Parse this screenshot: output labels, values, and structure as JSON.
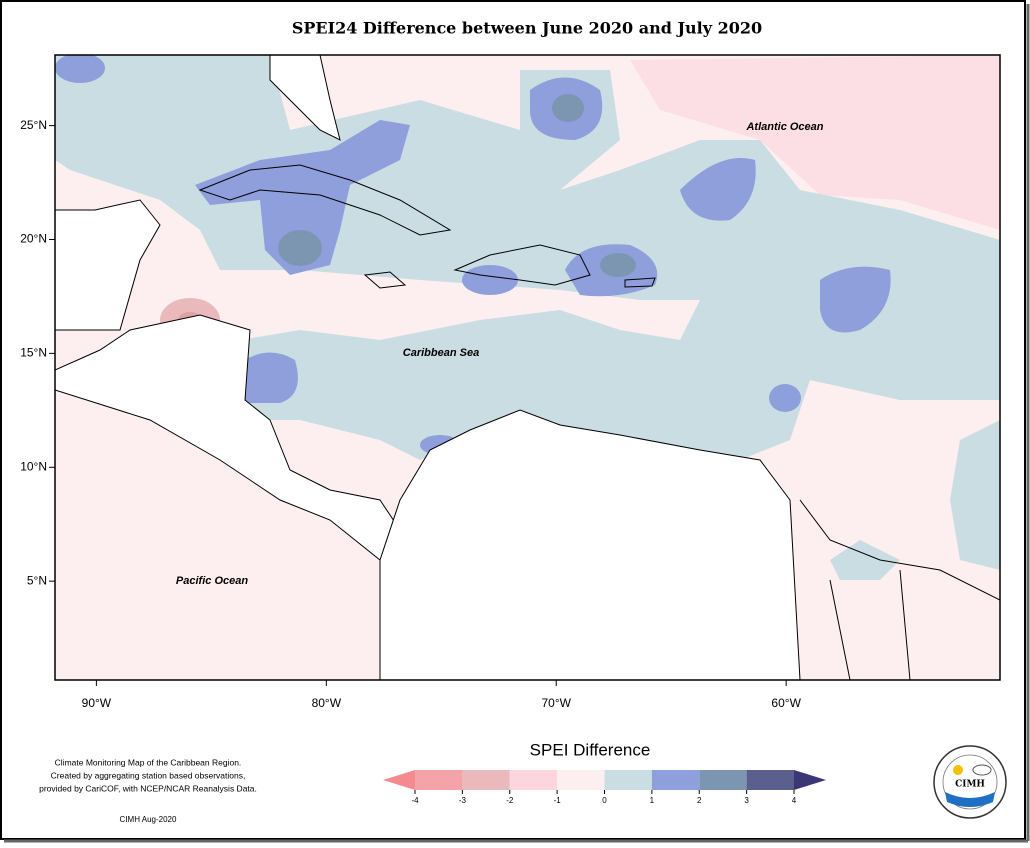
{
  "title": "SPEI24 Difference between June 2020 and July 2020",
  "map": {
    "xlim": [
      -91.8,
      -50.7
    ],
    "ylim": [
      0.66,
      28.1
    ],
    "lon_ticks": [
      {
        "value": -90,
        "label": "90°W"
      },
      {
        "value": -80,
        "label": "80°W"
      },
      {
        "value": -70,
        "label": "70°W"
      },
      {
        "value": -60,
        "label": "60°W"
      }
    ],
    "lat_ticks": [
      {
        "value": 25,
        "label": "25°N"
      },
      {
        "value": 20,
        "label": "20°N"
      },
      {
        "value": 15,
        "label": "15°N"
      },
      {
        "value": 10,
        "label": "10°N"
      },
      {
        "value": 5,
        "label": "5°N"
      }
    ],
    "labels": [
      "Atlantic Ocean",
      "Caribbean Sea",
      "Pacific Ocean"
    ]
  },
  "legend": {
    "title": "SPEI Difference",
    "ticks": [
      -4,
      -3,
      -2,
      -1,
      0,
      1,
      2,
      3,
      4
    ],
    "colors": [
      "#f48a8f",
      "#f4a3a8",
      "#e9b9bc",
      "#fbd6de",
      "#fdeff0",
      "#c9dde3",
      "#8e9fdc",
      "#7c96b2",
      "#5b5f8e",
      "#3b3775"
    ]
  },
  "footnote": [
    "Climate Monitoring Map of the Caribbean Region.",
    "Created by aggregating station based observations,",
    "provided by CariCOF, with NCEP/NCAR Reanalysis Data."
  ],
  "credit": "CIMH Aug-2020",
  "logo": "CIMH"
}
